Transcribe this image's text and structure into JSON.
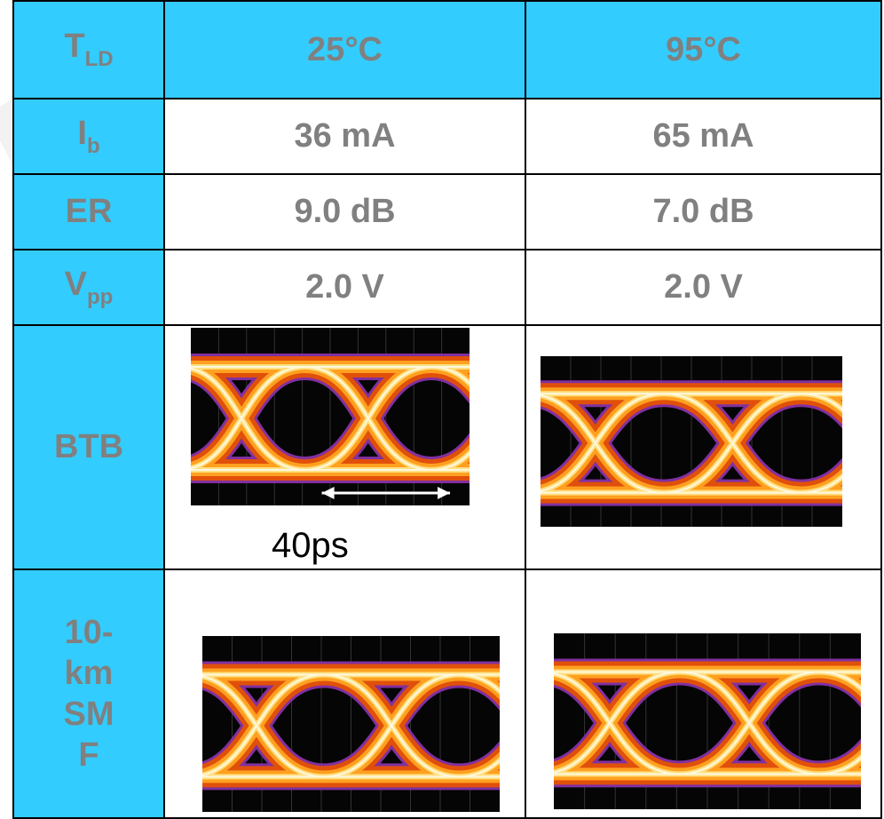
{
  "table": {
    "header": {
      "label": {
        "text": "T",
        "sub": "LD"
      },
      "cells": [
        "25°C",
        "95°C"
      ]
    },
    "rows": [
      {
        "label": {
          "text": "I",
          "sub": "b"
        },
        "cells": [
          "36 mA",
          "65 mA"
        ]
      },
      {
        "label": {
          "text": "ER"
        },
        "cells": [
          "9.0 dB",
          "7.0 dB"
        ]
      },
      {
        "label": {
          "text": "V",
          "sub": "pp"
        },
        "cells": [
          "2.0 V",
          "2.0 V"
        ]
      },
      {
        "label": {
          "text": "BTB"
        },
        "annotation": "40ps"
      },
      {
        "label": {
          "text": "10-km SMF"
        }
      }
    ]
  }
}
